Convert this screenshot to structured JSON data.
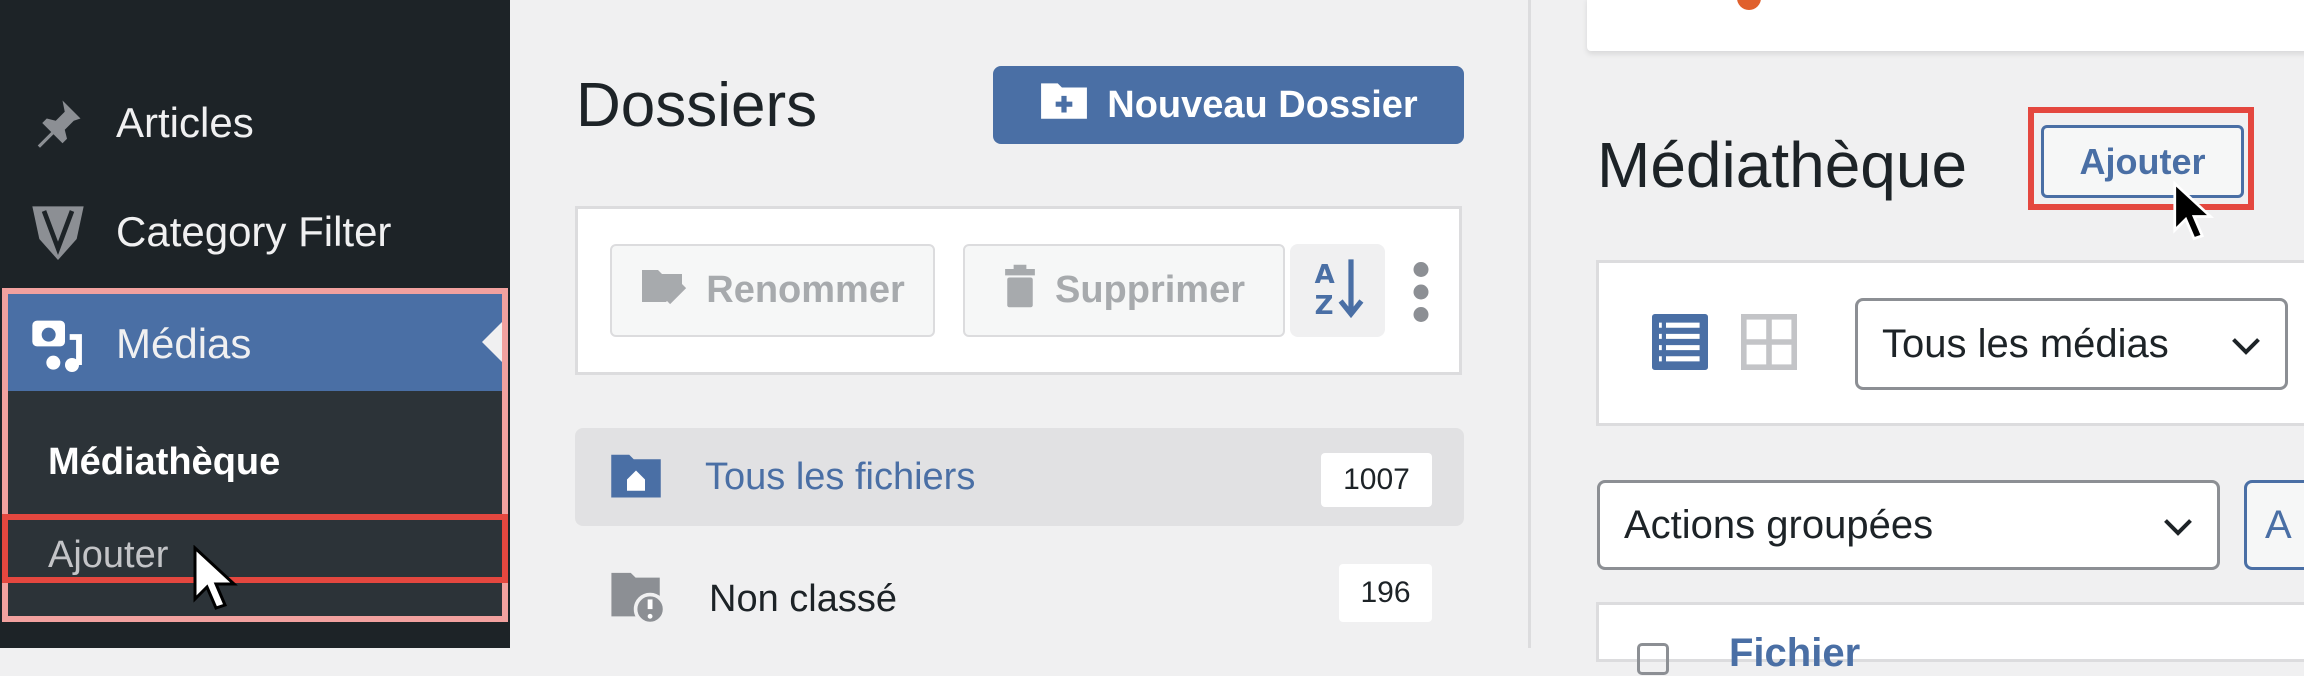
{
  "sidebar": {
    "items": [
      {
        "label": "Articles",
        "icon": "pin-icon"
      },
      {
        "label": "Category Filter",
        "icon": "category-filter-logo-icon"
      },
      {
        "label": "Médias",
        "icon": "media-icon",
        "active": true
      }
    ],
    "submenu": [
      {
        "label": "Médiathèque",
        "current": true
      },
      {
        "label": "Ajouter",
        "highlighted": true
      }
    ]
  },
  "folders": {
    "title": "Dossiers",
    "new_folder_label": "Nouveau Dossier",
    "rename_label": "Renommer",
    "delete_label": "Supprimer",
    "sort_icon": "sort-az-icon",
    "more_icon": "more-vertical-icon",
    "list": [
      {
        "label": "Tous les fichiers",
        "count": "1007",
        "active": true
      },
      {
        "label": "Non classé",
        "count": "196"
      }
    ]
  },
  "library": {
    "title": "Médiathèque",
    "add_label": "Ajouter",
    "filter_select": "Tous les médias",
    "bulk_select": "Actions groupées",
    "apply_label": "A",
    "column_label": "Fichier"
  },
  "colors": {
    "accent": "#4a6fa5",
    "highlight": "#e4473f",
    "sidebar": "#1d2327"
  }
}
